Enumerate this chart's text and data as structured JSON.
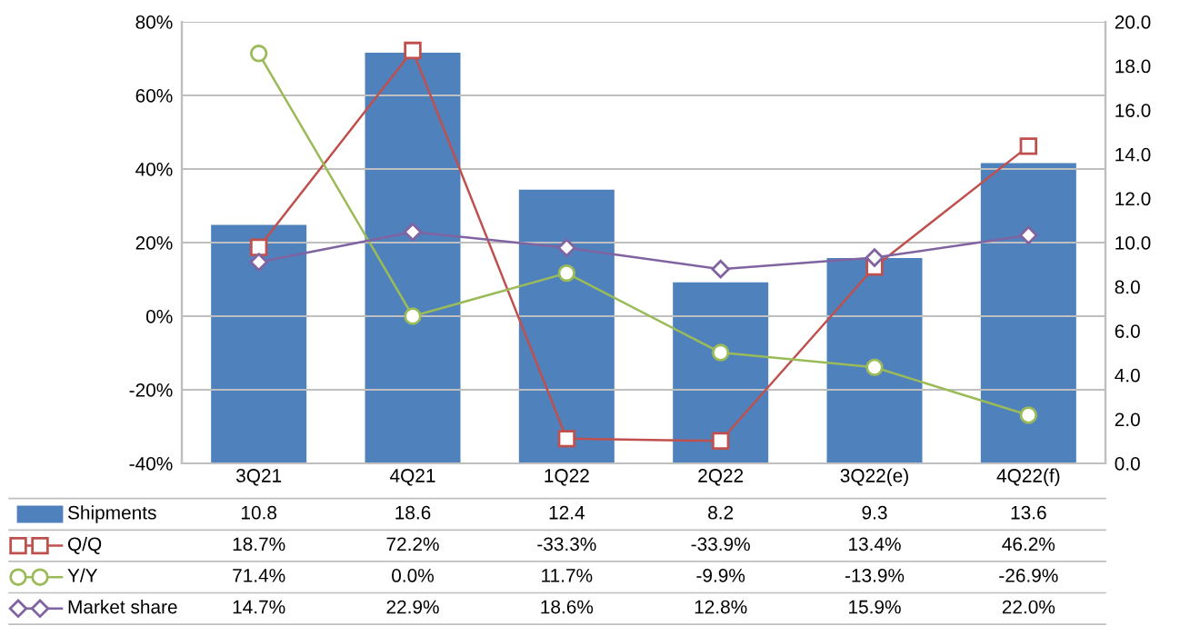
{
  "chart_data": {
    "type": "bar",
    "categories": [
      "3Q21",
      "4Q21",
      "1Q22",
      "2Q22",
      "3Q22(e)",
      "4Q22(f)"
    ],
    "series": [
      {
        "name": "Shipments",
        "axis": "y2",
        "color": "#4f81bd",
        "values": [
          10.8,
          18.6,
          12.4,
          8.2,
          9.3,
          13.6
        ],
        "value_labels": [
          "10.8",
          "18.6",
          "12.4",
          "8.2",
          "9.3",
          "13.6"
        ]
      },
      {
        "name": "Q/Q",
        "type": "line",
        "axis": "y",
        "color": "#c0504d",
        "marker": "square",
        "values": [
          18.7,
          72.2,
          -33.3,
          -33.9,
          13.4,
          46.2
        ],
        "value_labels": [
          "18.7%",
          "72.2%",
          "-33.3%",
          "-33.9%",
          "13.4%",
          "46.2%"
        ]
      },
      {
        "name": "Y/Y",
        "type": "line",
        "axis": "y",
        "color": "#9bbb59",
        "marker": "circle",
        "values": [
          71.4,
          0.0,
          11.7,
          -9.9,
          -13.9,
          -26.9
        ],
        "value_labels": [
          "71.4%",
          "0.0%",
          "11.7%",
          "-9.9%",
          "-13.9%",
          "-26.9%"
        ]
      },
      {
        "name": "Market share",
        "type": "line",
        "axis": "y",
        "color": "#8064a2",
        "marker": "diamond",
        "values": [
          14.7,
          22.9,
          18.6,
          12.8,
          15.9,
          22.0
        ],
        "value_labels": [
          "14.7%",
          "22.9%",
          "18.6%",
          "12.8%",
          "15.9%",
          "22.0%"
        ]
      }
    ],
    "ylim": [
      -40,
      80
    ],
    "yticks": [
      {
        "value": -40,
        "label": "-40%"
      },
      {
        "value": -20,
        "label": "-20%"
      },
      {
        "value": 0,
        "label": "0%"
      },
      {
        "value": 20,
        "label": "20%"
      },
      {
        "value": 40,
        "label": "40%"
      },
      {
        "value": 60,
        "label": "60%"
      },
      {
        "value": 80,
        "label": "80%"
      }
    ],
    "y2lim": [
      0,
      20
    ],
    "y2ticks": [
      {
        "value": 0,
        "label": "0.0"
      },
      {
        "value": 2,
        "label": "2.0"
      },
      {
        "value": 4,
        "label": "4.0"
      },
      {
        "value": 6,
        "label": "6.0"
      },
      {
        "value": 8,
        "label": "8.0"
      },
      {
        "value": 10,
        "label": "10.0"
      },
      {
        "value": 12,
        "label": "12.0"
      },
      {
        "value": 14,
        "label": "14.0"
      },
      {
        "value": 16,
        "label": "16.0"
      },
      {
        "value": 18,
        "label": "18.0"
      },
      {
        "value": 20,
        "label": "20.0"
      }
    ],
    "grid": "y",
    "legend": "bottom left",
    "data_labels": false
  }
}
